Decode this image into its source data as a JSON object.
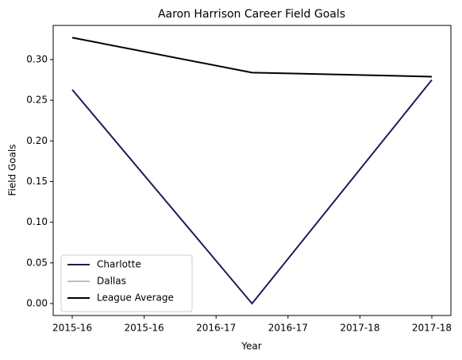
{
  "chart_data": {
    "type": "line",
    "title": "Aaron Harrison Career Field Goals",
    "xlabel": "Year",
    "ylabel": "Field Goals",
    "x": [
      0,
      1,
      2
    ],
    "series": [
      {
        "name": "Charlotte",
        "color": "#1f1a57",
        "values": [
          0.263,
          0.0,
          0.275
        ]
      },
      {
        "name": "Dallas",
        "color": "#bfbfbf",
        "values": [
          null,
          null,
          null
        ]
      },
      {
        "name": "League Average",
        "color": "#000000",
        "values": [
          0.327,
          0.284,
          0.279
        ]
      }
    ],
    "xlim": [
      -0.106,
      2.106
    ],
    "xticks": [
      {
        "value": 0,
        "label": "2015-16"
      },
      {
        "value": 0.4,
        "label": "2015-16"
      },
      {
        "value": 0.8,
        "label": "2016-17"
      },
      {
        "value": 1.2,
        "label": "2016-17"
      },
      {
        "value": 1.6,
        "label": "2017-18"
      },
      {
        "value": 2.0,
        "label": "2017-18"
      }
    ],
    "ylim": [
      -0.0147,
      0.342
    ],
    "yticks": [
      {
        "value": 0,
        "label": "0.00"
      },
      {
        "value": 0.05,
        "label": "0.05"
      },
      {
        "value": 0.1,
        "label": "0.10"
      },
      {
        "value": 0.15,
        "label": "0.15"
      },
      {
        "value": 0.2,
        "label": "0.20"
      },
      {
        "value": 0.25,
        "label": "0.25"
      },
      {
        "value": 0.3,
        "label": "0.30"
      }
    ],
    "grid": false,
    "legend": "lower left"
  }
}
